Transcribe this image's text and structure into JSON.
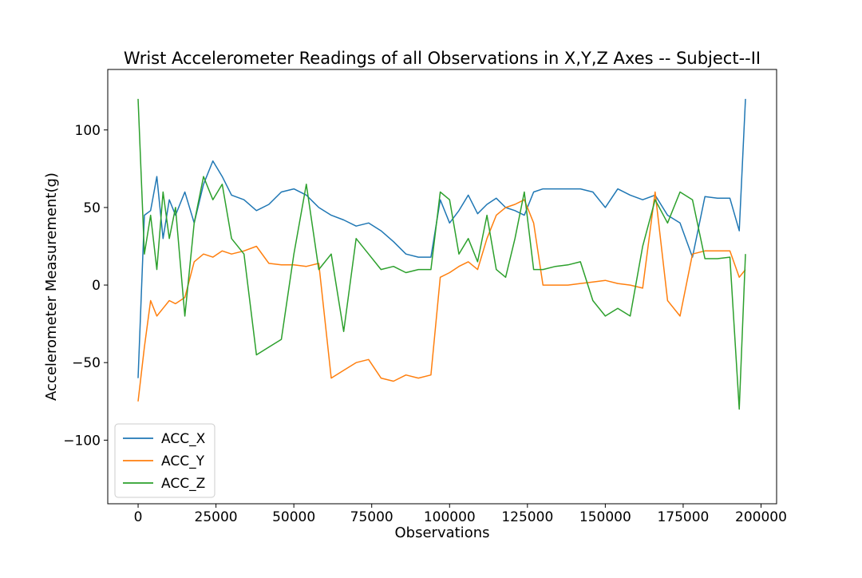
{
  "chart_data": {
    "type": "line",
    "title": "Wrist Accelerometer Readings of all Observations in X,Y,Z Axes -- Subject--II",
    "xlabel": "Observations",
    "ylabel": "Accelerometer Measurement(g)",
    "xlim": [
      -9750,
      205000
    ],
    "ylim": [
      -141,
      139
    ],
    "x_ticks": [
      0,
      25000,
      50000,
      75000,
      100000,
      125000,
      150000,
      175000,
      200000
    ],
    "x_tick_labels": [
      "0",
      "25000",
      "50000",
      "75000",
      "100000",
      "125000",
      "150000",
      "175000",
      "200000"
    ],
    "y_ticks": [
      -100,
      -50,
      0,
      50,
      100
    ],
    "y_tick_labels": [
      "−100",
      "−50",
      "0",
      "50",
      "100"
    ],
    "grid": false,
    "legend_position": "lower-left",
    "series": [
      {
        "name": "ACC_X",
        "color": "#1f77b4",
        "x": [
          0,
          2000,
          4000,
          6000,
          8000,
          10000,
          12000,
          15000,
          18000,
          21000,
          24000,
          27000,
          30000,
          34000,
          38000,
          42000,
          46000,
          50000,
          54000,
          58000,
          62000,
          66000,
          70000,
          74000,
          78000,
          82000,
          86000,
          90000,
          94000,
          97000,
          100000,
          103000,
          106000,
          109000,
          112000,
          115000,
          118000,
          121000,
          124000,
          127000,
          130000,
          134000,
          138000,
          142000,
          146000,
          150000,
          154000,
          158000,
          162000,
          166000,
          170000,
          174000,
          178000,
          182000,
          186000,
          190000,
          193000,
          195000
        ],
        "values": [
          -60,
          45,
          48,
          70,
          30,
          55,
          45,
          60,
          40,
          65,
          80,
          70,
          58,
          55,
          48,
          52,
          60,
          62,
          58,
          50,
          45,
          42,
          38,
          40,
          35,
          28,
          20,
          18,
          18,
          55,
          40,
          48,
          58,
          46,
          52,
          56,
          50,
          48,
          45,
          60,
          62,
          62,
          62,
          62,
          60,
          50,
          62,
          58,
          55,
          58,
          45,
          40,
          18,
          57,
          56,
          56,
          35,
          120
        ]
      },
      {
        "name": "ACC_Y",
        "color": "#ff7f0e",
        "x": [
          0,
          2000,
          4000,
          6000,
          8000,
          10000,
          12000,
          15000,
          18000,
          21000,
          24000,
          27000,
          30000,
          34000,
          38000,
          42000,
          46000,
          50000,
          54000,
          58000,
          62000,
          66000,
          70000,
          74000,
          78000,
          82000,
          86000,
          90000,
          94000,
          97000,
          100000,
          103000,
          106000,
          109000,
          112000,
          115000,
          118000,
          121000,
          124000,
          127000,
          130000,
          134000,
          138000,
          142000,
          146000,
          150000,
          154000,
          158000,
          162000,
          166000,
          170000,
          174000,
          178000,
          182000,
          186000,
          190000,
          193000,
          195000
        ],
        "values": [
          -75,
          -40,
          -10,
          -20,
          -15,
          -10,
          -12,
          -8,
          15,
          20,
          18,
          22,
          20,
          22,
          25,
          14,
          13,
          13,
          12,
          14,
          -60,
          -55,
          -50,
          -48,
          -60,
          -62,
          -58,
          -60,
          -58,
          5,
          8,
          12,
          15,
          10,
          30,
          45,
          50,
          52,
          55,
          40,
          0,
          0,
          0,
          1,
          2,
          3,
          1,
          0,
          -2,
          60,
          -10,
          -20,
          20,
          22,
          22,
          22,
          5,
          10
        ]
      },
      {
        "name": "ACC_Z",
        "color": "#2ca02c",
        "x": [
          0,
          2000,
          4000,
          6000,
          8000,
          10000,
          12000,
          15000,
          18000,
          21000,
          24000,
          27000,
          30000,
          34000,
          38000,
          42000,
          46000,
          50000,
          54000,
          58000,
          62000,
          66000,
          70000,
          74000,
          78000,
          82000,
          86000,
          90000,
          94000,
          97000,
          100000,
          103000,
          106000,
          109000,
          112000,
          115000,
          118000,
          121000,
          124000,
          127000,
          130000,
          134000,
          138000,
          142000,
          146000,
          150000,
          154000,
          158000,
          162000,
          166000,
          170000,
          174000,
          178000,
          182000,
          186000,
          190000,
          193000,
          195000
        ],
        "values": [
          120,
          20,
          45,
          10,
          60,
          30,
          50,
          -20,
          40,
          70,
          55,
          65,
          30,
          20,
          -45,
          -40,
          -35,
          20,
          65,
          10,
          20,
          -30,
          30,
          20,
          10,
          12,
          8,
          10,
          10,
          60,
          55,
          20,
          30,
          15,
          45,
          10,
          5,
          30,
          60,
          10,
          10,
          12,
          13,
          15,
          -10,
          -20,
          -15,
          -20,
          25,
          55,
          40,
          60,
          55,
          17,
          17,
          18,
          -80,
          20
        ]
      }
    ]
  }
}
